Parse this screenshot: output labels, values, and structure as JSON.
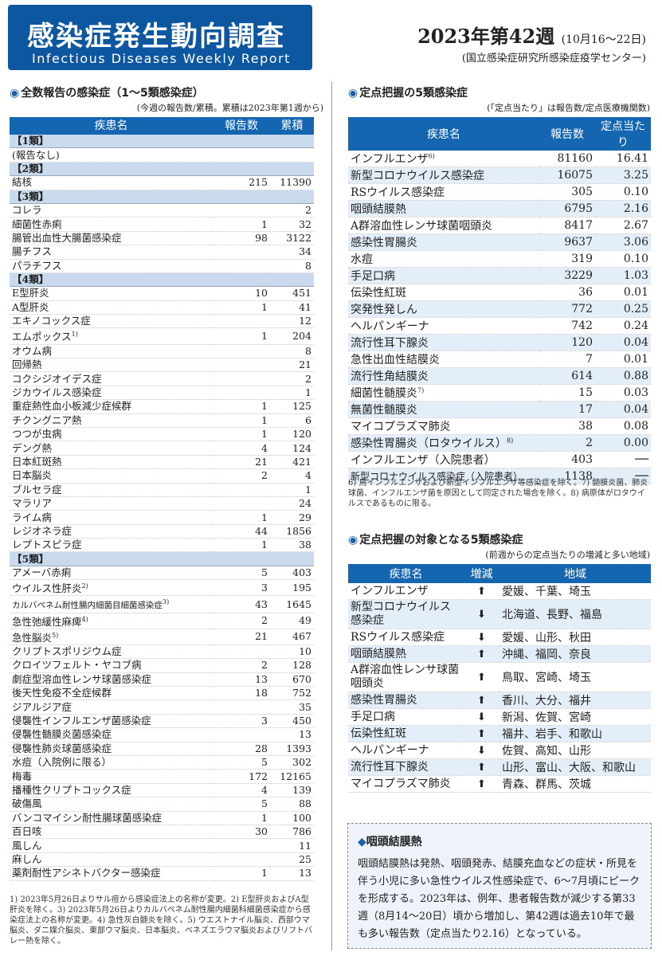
{
  "header": {
    "title": "感染症発生動向調査",
    "subtitle": "Infectious Diseases Weekly Report",
    "week": "2023年第42週",
    "week_range": "(10月16～22日)",
    "institution": "(国立感染症研究所感染症疫学センター)"
  },
  "left": {
    "title": "全数報告の感染症（1～5類感染症）",
    "note": "(今週の報告数/累積。累積は2023年第1週から)",
    "col_disease": "疾患名",
    "col_reports": "報告数",
    "col_cumulative": "累積",
    "rows": [
      {
        "cat": "【1類】"
      },
      {
        "name": "(報告なし)",
        "n": "",
        "c": ""
      },
      {
        "cat": "【2類】"
      },
      {
        "name": "結核",
        "n": "215",
        "c": "11390"
      },
      {
        "cat": "【3類】"
      },
      {
        "name": "コレラ",
        "n": "",
        "c": "2"
      },
      {
        "name": "細菌性赤痢",
        "n": "1",
        "c": "32"
      },
      {
        "name": "腸管出血性大腸菌感染症",
        "n": "98",
        "c": "3122"
      },
      {
        "name": "腸チフス",
        "n": "",
        "c": "34"
      },
      {
        "name": "パラチフス",
        "n": "",
        "c": "8"
      },
      {
        "cat": "【4類】"
      },
      {
        "name": "E型肝炎",
        "n": "10",
        "c": "451"
      },
      {
        "name": "A型肝炎",
        "n": "1",
        "c": "41"
      },
      {
        "name": "エキノコックス症",
        "n": "",
        "c": "12"
      },
      {
        "name": "エムポックス",
        "sup": "1)",
        "n": "1",
        "c": "204"
      },
      {
        "name": "オウム病",
        "n": "",
        "c": "8"
      },
      {
        "name": "回帰熱",
        "n": "",
        "c": "21"
      },
      {
        "name": "コクシジオイデス症",
        "n": "",
        "c": "2"
      },
      {
        "name": "ジカウイルス感染症",
        "n": "",
        "c": "1"
      },
      {
        "name": "重症熱性血小板減少症候群",
        "n": "1",
        "c": "125"
      },
      {
        "name": "チクングニア熱",
        "n": "1",
        "c": "6"
      },
      {
        "name": "つつが虫病",
        "n": "1",
        "c": "120"
      },
      {
        "name": "デング熱",
        "n": "4",
        "c": "124"
      },
      {
        "name": "日本紅斑熱",
        "n": "21",
        "c": "421"
      },
      {
        "name": "日本脳炎",
        "n": "2",
        "c": "4"
      },
      {
        "name": "ブルセラ症",
        "n": "",
        "c": "1"
      },
      {
        "name": "マラリア",
        "n": "",
        "c": "24"
      },
      {
        "name": "ライム病",
        "n": "1",
        "c": "29"
      },
      {
        "name": "レジオネラ症",
        "n": "44",
        "c": "1856"
      },
      {
        "name": "レプトスピラ症",
        "n": "1",
        "c": "38"
      },
      {
        "cat": "【5類】"
      },
      {
        "name": "アメーバ赤痢",
        "n": "5",
        "c": "403"
      },
      {
        "name": "ウイルス性肝炎",
        "sup": "2)",
        "n": "3",
        "c": "195"
      },
      {
        "name": "カルバペネム耐性腸内細菌目細菌感染症",
        "sup": "3)",
        "n": "43",
        "c": "1645",
        "small": true
      },
      {
        "name": "急性弛緩性麻痺",
        "sup": "4)",
        "n": "2",
        "c": "49"
      },
      {
        "name": "急性脳炎",
        "sup": "5)",
        "n": "21",
        "c": "467"
      },
      {
        "name": "クリプトスポリジウム症",
        "n": "",
        "c": "10"
      },
      {
        "name": "クロイツフェルト・ヤコブ病",
        "n": "2",
        "c": "128"
      },
      {
        "name": "劇症型溶血性レンサ球菌感染症",
        "n": "13",
        "c": "670"
      },
      {
        "name": "後天性免疫不全症候群",
        "n": "18",
        "c": "752"
      },
      {
        "name": "ジアルジア症",
        "n": "",
        "c": "35"
      },
      {
        "name": "侵襲性インフルエンザ菌感染症",
        "n": "3",
        "c": "450"
      },
      {
        "name": "侵襲性髄膜炎菌感染症",
        "n": "",
        "c": "13"
      },
      {
        "name": "侵襲性肺炎球菌感染症",
        "n": "28",
        "c": "1393"
      },
      {
        "name": "水痘（入院例に限る）",
        "n": "5",
        "c": "302"
      },
      {
        "name": "梅毒",
        "n": "172",
        "c": "12165"
      },
      {
        "name": "播種性クリプトコックス症",
        "n": "4",
        "c": "139"
      },
      {
        "name": "破傷風",
        "n": "5",
        "c": "88"
      },
      {
        "name": "バンコマイシン耐性腸球菌感染症",
        "n": "1",
        "c": "100"
      },
      {
        "name": "百日咳",
        "n": "30",
        "c": "786"
      },
      {
        "name": "風しん",
        "n": "",
        "c": "11"
      },
      {
        "name": "麻しん",
        "n": "",
        "c": "25"
      },
      {
        "name": "薬剤耐性アシネトバクター感染症",
        "n": "1",
        "c": "13"
      }
    ],
    "footnote": "1) 2023年5月26日よりサル痘から感染症法上の名称が変更。2) E型肝炎およびA型肝炎を除く。3) 2023年5月26日よりカルバペネム耐性腸内細菌科細菌感染症から感染症法上の名称が変更。4) 急性灰白髄炎を除く。5) ウエストナイル脳炎、西部ウマ脳炎、ダニ媒介脳炎、東部ウマ脳炎、日本脳炎、ベネズエラウマ脳炎およびリフトバレー熱を除く。"
  },
  "right_top": {
    "title": "定点把握の5類感染症",
    "note": "(「定点当たり」は報告数/定点医療機関数)",
    "col_disease": "疾患名",
    "col_reports": "報告数",
    "col_per": "定点当たり",
    "rows": [
      {
        "name": "インフルエンザ",
        "sup": "6)",
        "n": "81160",
        "p": "16.41"
      },
      {
        "name": "新型コロナウイルス感染症",
        "n": "16075",
        "p": "3.25"
      },
      {
        "name": "RSウイルス感染症",
        "n": "305",
        "p": "0.10"
      },
      {
        "name": "咽頭結膜熱",
        "n": "6795",
        "p": "2.16"
      },
      {
        "name": "A群溶血性レンサ球菌咽頭炎",
        "n": "8417",
        "p": "2.67"
      },
      {
        "name": "感染性胃腸炎",
        "n": "9637",
        "p": "3.06"
      },
      {
        "name": "水痘",
        "n": "319",
        "p": "0.10"
      },
      {
        "name": "手足口病",
        "n": "3229",
        "p": "1.03"
      },
      {
        "name": "伝染性紅斑",
        "n": "36",
        "p": "0.01"
      },
      {
        "name": "突発性発しん",
        "n": "772",
        "p": "0.25"
      },
      {
        "name": "ヘルパンギーナ",
        "n": "742",
        "p": "0.24"
      },
      {
        "name": "流行性耳下腺炎",
        "n": "120",
        "p": "0.04"
      },
      {
        "name": "急性出血性結膜炎",
        "n": "7",
        "p": "0.01"
      },
      {
        "name": "流行性角結膜炎",
        "n": "614",
        "p": "0.88"
      },
      {
        "name": "細菌性髄膜炎",
        "sup": "7)",
        "n": "15",
        "p": "0.03"
      },
      {
        "name": "無菌性髄膜炎",
        "n": "17",
        "p": "0.04"
      },
      {
        "name": "マイコプラズマ肺炎",
        "n": "38",
        "p": "0.08"
      },
      {
        "name": "感染性胃腸炎（ロタウイルス）",
        "sup": "8)",
        "n": "2",
        "p": "0.00"
      },
      {
        "name": "インフルエンザ（入院患者）",
        "n": "403",
        "p": "──"
      },
      {
        "name": "新型コロナウイルス感染症（入院患者）",
        "n": "1138",
        "p": "──",
        "small": true
      }
    ],
    "footnote": "6) 鳥インフルエンザおよび新型インフルエンザ等感染症を除く。7) 髄膜炎菌、肺炎球菌、インフルエンザ菌を原因として同定された場合を除く。8) 病原体がロタウイルスであるものに限る。"
  },
  "right_mid": {
    "title": "定点把握の対象となる5類感染症",
    "note": "(前週からの定点当たりの増減と多い地域)",
    "col_disease": "疾患名",
    "col_change": "増減",
    "col_region": "地域",
    "rows": [
      {
        "name": "インフルエンザ",
        "dir": "up",
        "r": "愛媛、千葉、埼玉"
      },
      {
        "name": "新型コロナウイルス感染症",
        "dir": "down",
        "r": "北海道、長野、福島",
        "tall": true
      },
      {
        "name": "RSウイルス感染症",
        "dir": "down",
        "r": "愛媛、山形、秋田"
      },
      {
        "name": "咽頭結膜熱",
        "dir": "up",
        "r": "沖縄、福岡、奈良"
      },
      {
        "name": "A群溶血性レンサ球菌咽頭炎",
        "dir": "up",
        "r": "鳥取、宮崎、埼玉",
        "tall": true
      },
      {
        "name": "感染性胃腸炎",
        "dir": "up",
        "r": "香川、大分、福井"
      },
      {
        "name": "手足口病",
        "dir": "down",
        "r": "新潟、佐賀、宮崎"
      },
      {
        "name": "伝染性紅斑",
        "dir": "up",
        "r": "福井、岩手、和歌山"
      },
      {
        "name": "ヘルパンギーナ",
        "dir": "down",
        "r": "佐賀、高知、山形"
      },
      {
        "name": "流行性耳下腺炎",
        "dir": "up",
        "r": "山形、富山、大阪、和歌山"
      },
      {
        "name": "マイコプラズマ肺炎",
        "dir": "up",
        "r": "青森、群馬、茨城"
      }
    ],
    "arrows": {
      "up": "⬆",
      "down": "⬇"
    }
  },
  "box": {
    "title": "咽頭結膜熱",
    "text": "咽頭結膜熱は発熱、咽頭発赤、結膜充血などの症状・所見を伴う小児に多い急性ウイルス性感染症で、6～7月頃にピークを形成する。2023年は、例年、患者報告数が減少する第33週（8月14～20日）頃から増加し、第42週は過去10年で最も多い報告数（定点当たり2.16）となっている。"
  }
}
